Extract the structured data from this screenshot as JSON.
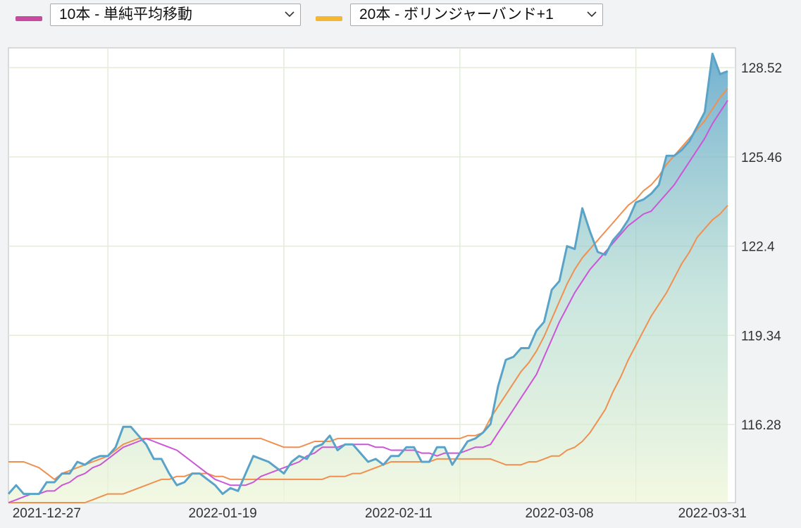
{
  "controls": {
    "ma_select": {
      "label": "10本 - 単純平均移動",
      "color": "#c74aa0"
    },
    "bb_select": {
      "label": "20本 - ボリンジャーバンド+1",
      "color": "#f5b731"
    }
  },
  "chart_data": {
    "type": "line",
    "x_tick_labels": [
      "2021-12-27",
      "2022-01-19",
      "2022-02-11",
      "2022-03-08",
      "2022-03-31"
    ],
    "y_tick_labels": [
      "128.52",
      "125.46",
      "122.4",
      "119.34",
      "116.28"
    ],
    "y_ticks": [
      128.52,
      125.46,
      122.4,
      119.34,
      116.28
    ],
    "ylim": [
      113.6,
      129.2
    ],
    "grid": true,
    "series": [
      {
        "color": "#5aa3c8",
        "fill": true,
        "values": [
          113.9,
          114.2,
          113.9,
          113.9,
          113.9,
          114.3,
          114.3,
          114.6,
          114.6,
          115.0,
          114.9,
          115.1,
          115.2,
          115.2,
          115.5,
          116.2,
          116.2,
          115.9,
          115.6,
          115.1,
          115.1,
          114.6,
          114.2,
          114.3,
          114.6,
          114.6,
          114.4,
          114.2,
          113.9,
          114.1,
          114.0,
          114.6,
          115.2,
          115.1,
          115.0,
          114.8,
          114.6,
          115.0,
          115.2,
          115.1,
          115.5,
          115.6,
          115.9,
          115.4,
          115.6,
          115.6,
          115.3,
          115.0,
          115.1,
          114.9,
          115.2,
          115.2,
          115.5,
          115.5,
          115.0,
          115.0,
          115.5,
          115.5,
          114.9,
          115.3,
          115.7,
          115.8,
          116.0,
          116.3,
          117.6,
          118.5,
          118.6,
          118.9,
          118.9,
          119.5,
          119.8,
          120.9,
          121.2,
          122.4,
          122.3,
          123.7,
          122.9,
          122.2,
          122.1,
          122.6,
          122.9,
          123.3,
          123.9,
          124.0,
          124.2,
          124.5,
          125.5,
          125.5,
          125.7,
          126.0,
          126.5,
          127.0,
          129.0,
          128.3,
          128.4
        ]
      },
      {
        "color": "#cc55d8",
        "values": [
          113.6,
          113.7,
          113.8,
          113.9,
          113.9,
          114.0,
          114.0,
          114.2,
          114.3,
          114.5,
          114.6,
          114.8,
          114.9,
          115.1,
          115.3,
          115.5,
          115.6,
          115.7,
          115.8,
          115.7,
          115.6,
          115.5,
          115.4,
          115.2,
          115.0,
          114.8,
          114.6,
          114.4,
          114.3,
          114.2,
          114.2,
          114.2,
          114.3,
          114.5,
          114.6,
          114.7,
          114.8,
          114.9,
          115.0,
          115.2,
          115.3,
          115.5,
          115.5,
          115.5,
          115.6,
          115.6,
          115.6,
          115.6,
          115.5,
          115.5,
          115.4,
          115.4,
          115.4,
          115.4,
          115.3,
          115.3,
          115.2,
          115.3,
          115.3,
          115.3,
          115.4,
          115.5,
          115.5,
          115.6,
          116.0,
          116.4,
          116.8,
          117.2,
          117.6,
          118.0,
          118.6,
          119.2,
          119.8,
          120.3,
          120.8,
          121.2,
          121.6,
          121.9,
          122.2,
          122.5,
          122.8,
          123.1,
          123.3,
          123.5,
          123.6,
          123.9,
          124.2,
          124.5,
          124.9,
          125.3,
          125.7,
          126.1,
          126.6,
          127.0,
          127.4
        ]
      },
      {
        "color": "#f09050",
        "values": [
          115.0,
          115.0,
          115.0,
          114.9,
          114.8,
          114.6,
          114.4,
          114.6,
          114.7,
          114.8,
          114.9,
          115.0,
          115.1,
          115.2,
          115.4,
          115.6,
          115.7,
          115.8,
          115.8,
          115.8,
          115.8,
          115.8,
          115.8,
          115.8,
          115.8,
          115.8,
          115.8,
          115.8,
          115.8,
          115.8,
          115.8,
          115.8,
          115.8,
          115.8,
          115.7,
          115.6,
          115.5,
          115.5,
          115.5,
          115.6,
          115.7,
          115.7,
          115.7,
          115.8,
          115.8,
          115.8,
          115.8,
          115.8,
          115.8,
          115.8,
          115.8,
          115.8,
          115.8,
          115.8,
          115.8,
          115.8,
          115.8,
          115.8,
          115.8,
          115.8,
          115.9,
          115.9,
          116.0,
          116.5,
          116.9,
          117.3,
          117.7,
          118.1,
          118.4,
          118.8,
          119.3,
          119.9,
          120.5,
          121.1,
          121.6,
          122.0,
          122.3,
          122.6,
          122.9,
          123.2,
          123.5,
          123.8,
          124.0,
          124.3,
          124.5,
          124.8,
          125.2,
          125.5,
          125.8,
          126.1,
          126.4,
          126.7,
          127.1,
          127.5,
          127.8
        ]
      },
      {
        "color": "#f09050",
        "values": [
          113.6,
          113.6,
          113.6,
          113.6,
          113.6,
          113.6,
          113.6,
          113.6,
          113.6,
          113.6,
          113.6,
          113.7,
          113.8,
          113.9,
          113.9,
          113.9,
          114.0,
          114.1,
          114.2,
          114.3,
          114.4,
          114.4,
          114.5,
          114.5,
          114.6,
          114.6,
          114.6,
          114.5,
          114.5,
          114.4,
          114.4,
          114.4,
          114.4,
          114.4,
          114.4,
          114.4,
          114.4,
          114.4,
          114.4,
          114.4,
          114.4,
          114.4,
          114.5,
          114.5,
          114.5,
          114.6,
          114.6,
          114.7,
          114.8,
          114.9,
          115.0,
          115.0,
          115.0,
          115.0,
          115.0,
          115.0,
          115.1,
          115.1,
          115.1,
          115.1,
          115.1,
          115.1,
          115.1,
          115.1,
          115.0,
          114.9,
          114.9,
          114.9,
          115.0,
          115.0,
          115.1,
          115.2,
          115.2,
          115.4,
          115.5,
          115.7,
          116.0,
          116.4,
          116.8,
          117.4,
          117.9,
          118.5,
          119.0,
          119.5,
          120.0,
          120.4,
          120.8,
          121.3,
          121.8,
          122.2,
          122.7,
          123.0,
          123.3,
          123.5,
          123.8
        ]
      }
    ]
  }
}
